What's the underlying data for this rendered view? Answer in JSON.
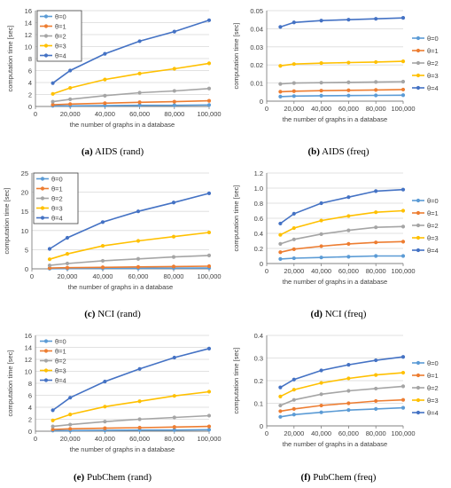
{
  "colors": {
    "theta0": "#5b9bd5",
    "theta1": "#ed7d31",
    "theta2": "#a5a5a5",
    "theta3": "#ffc000",
    "theta4": "#4472c4",
    "axis": "#808080",
    "grid": "#d9d9d9"
  },
  "chart_data": [
    {
      "type": "line",
      "caption_tag": "(a)",
      "caption_text": "AIDS (rand)",
      "ylabel": "computation time [sec]",
      "xlabel": "the number of graphs in a database",
      "x": [
        10000,
        20000,
        40000,
        60000,
        80000,
        100000
      ],
      "xticks": [
        0,
        20000,
        40000,
        60000,
        80000,
        100000
      ],
      "xtick_labels": [
        "0",
        "20,000",
        "40,000",
        "60,000",
        "80,000",
        "100,000"
      ],
      "xlim": [
        0,
        100000
      ],
      "ylim": [
        0,
        16
      ],
      "yticks": [
        0,
        2,
        4,
        6,
        8,
        10,
        12,
        14,
        16
      ],
      "ytick_labels": [
        "0",
        "2",
        "4",
        "6",
        "8",
        "10",
        "12",
        "14",
        "16"
      ],
      "legend_position": "top-left",
      "legend_boxed": true,
      "series": [
        {
          "name": "θ=0",
          "values": [
            0.1,
            0.1,
            0.15,
            0.2,
            0.2,
            0.25
          ]
        },
        {
          "name": "θ=1",
          "values": [
            0.3,
            0.4,
            0.55,
            0.7,
            0.8,
            0.95
          ]
        },
        {
          "name": "θ=2",
          "values": [
            0.8,
            1.2,
            1.8,
            2.3,
            2.6,
            3.0
          ]
        },
        {
          "name": "θ=3",
          "values": [
            2.1,
            3.1,
            4.5,
            5.5,
            6.3,
            7.2
          ]
        },
        {
          "name": "θ=4",
          "values": [
            3.9,
            6.0,
            8.8,
            10.9,
            12.5,
            14.4
          ]
        }
      ]
    },
    {
      "type": "line",
      "caption_tag": "(b)",
      "caption_text": "AIDS (freq)",
      "ylabel": "computation time [sec]",
      "xlabel": "the number of graphs in a database",
      "x": [
        10000,
        20000,
        40000,
        60000,
        80000,
        100000
      ],
      "xticks": [
        0,
        20000,
        40000,
        60000,
        80000,
        100000
      ],
      "xtick_labels": [
        "0",
        "20,000",
        "40,000",
        "60,000",
        "80,000",
        "100,000"
      ],
      "xlim": [
        0,
        100000
      ],
      "ylim": [
        0,
        0.05
      ],
      "yticks": [
        0,
        0.01,
        0.02,
        0.03,
        0.04,
        0.05
      ],
      "ytick_labels": [
        "0",
        "0.01",
        "0.02",
        "0.03",
        "0.04",
        "0.05"
      ],
      "legend_position": "right",
      "legend_boxed": false,
      "series": [
        {
          "name": "θ=0",
          "values": [
            0.0025,
            0.0028,
            0.003,
            0.0031,
            0.0032,
            0.0033
          ]
        },
        {
          "name": "θ=1",
          "values": [
            0.0052,
            0.0055,
            0.0058,
            0.006,
            0.0062,
            0.0064
          ]
        },
        {
          "name": "θ=2",
          "values": [
            0.0095,
            0.01,
            0.0102,
            0.0104,
            0.0106,
            0.0108
          ]
        },
        {
          "name": "θ=3",
          "values": [
            0.0195,
            0.0205,
            0.021,
            0.0213,
            0.0216,
            0.022
          ]
        },
        {
          "name": "θ=4",
          "values": [
            0.041,
            0.0435,
            0.0445,
            0.045,
            0.0455,
            0.046
          ]
        }
      ]
    },
    {
      "type": "line",
      "caption_tag": "(c)",
      "caption_text": "NCI (rand)",
      "ylabel": "computation time [sec]",
      "xlabel": "the number of graphs in a database",
      "x": [
        10000,
        20000,
        40000,
        60000,
        80000,
        100000
      ],
      "xticks": [
        0,
        20000,
        40000,
        60000,
        80000,
        100000
      ],
      "xtick_labels": [
        "0",
        "20,000",
        "40,000",
        "60,000",
        "80,000",
        "100,000"
      ],
      "xlim": [
        0,
        100000
      ],
      "ylim": [
        0,
        25
      ],
      "yticks": [
        0,
        5,
        10,
        15,
        20,
        25
      ],
      "ytick_labels": [
        "0",
        "5",
        "10",
        "15",
        "20",
        "25"
      ],
      "legend_position": "top-left",
      "legend_boxed": true,
      "series": [
        {
          "name": "θ=0",
          "values": [
            0.05,
            0.08,
            0.12,
            0.15,
            0.18,
            0.2
          ]
        },
        {
          "name": "θ=1",
          "values": [
            0.2,
            0.3,
            0.4,
            0.5,
            0.6,
            0.7
          ]
        },
        {
          "name": "θ=2",
          "values": [
            0.9,
            1.4,
            2.1,
            2.6,
            3.1,
            3.5
          ]
        },
        {
          "name": "θ=3",
          "values": [
            2.5,
            3.9,
            6.0,
            7.3,
            8.4,
            9.5
          ]
        },
        {
          "name": "θ=4",
          "values": [
            5.2,
            8.1,
            12.2,
            15.0,
            17.3,
            19.7
          ]
        }
      ]
    },
    {
      "type": "line",
      "caption_tag": "(d)",
      "caption_text": "NCI (freq)",
      "ylabel": "computation time [sec]",
      "xlabel": "the number of graphs in a database",
      "x": [
        10000,
        20000,
        40000,
        60000,
        80000,
        100000
      ],
      "xticks": [
        0,
        20000,
        40000,
        60000,
        80000,
        100000
      ],
      "xtick_labels": [
        "0",
        "20,000",
        "40,000",
        "60,000",
        "80,000",
        "100,000"
      ],
      "xlim": [
        0,
        100000
      ],
      "ylim": [
        0,
        1.2
      ],
      "yticks": [
        0,
        0.2,
        0.4,
        0.6,
        0.8,
        1.0,
        1.2
      ],
      "ytick_labels": [
        "0",
        "0.2",
        "0.4",
        "0.6",
        "0.8",
        "1.0",
        "1.2"
      ],
      "legend_position": "right",
      "legend_boxed": false,
      "series": [
        {
          "name": "θ=0",
          "values": [
            0.06,
            0.07,
            0.08,
            0.09,
            0.1,
            0.1
          ]
        },
        {
          "name": "θ=1",
          "values": [
            0.15,
            0.19,
            0.23,
            0.26,
            0.28,
            0.29
          ]
        },
        {
          "name": "θ=2",
          "values": [
            0.26,
            0.32,
            0.39,
            0.44,
            0.48,
            0.49
          ]
        },
        {
          "name": "θ=3",
          "values": [
            0.38,
            0.47,
            0.57,
            0.63,
            0.68,
            0.7
          ]
        },
        {
          "name": "θ=4",
          "values": [
            0.53,
            0.66,
            0.8,
            0.88,
            0.96,
            0.98
          ]
        }
      ]
    },
    {
      "type": "line",
      "caption_tag": "(e)",
      "caption_text": "PubChem (rand)",
      "ylabel": "computation time [sec]",
      "xlabel": "the number of graphs in a database",
      "x": [
        10000,
        20000,
        40000,
        60000,
        80000,
        100000
      ],
      "xticks": [
        0,
        20000,
        40000,
        60000,
        80000,
        100000
      ],
      "xtick_labels": [
        "0",
        "20,000",
        "40,000",
        "60,000",
        "80,000",
        "100,000"
      ],
      "xlim": [
        0,
        100000
      ],
      "ylim": [
        0,
        16
      ],
      "yticks": [
        0,
        2,
        4,
        6,
        8,
        10,
        12,
        14,
        16
      ],
      "ytick_labels": [
        "0",
        "2",
        "4",
        "6",
        "8",
        "10",
        "12",
        "14",
        "16"
      ],
      "legend_position": "top-left",
      "legend_boxed": false,
      "series": [
        {
          "name": "θ=0",
          "values": [
            0.1,
            0.1,
            0.15,
            0.2,
            0.2,
            0.25
          ]
        },
        {
          "name": "θ=1",
          "values": [
            0.3,
            0.4,
            0.5,
            0.6,
            0.7,
            0.8
          ]
        },
        {
          "name": "θ=2",
          "values": [
            0.8,
            1.1,
            1.6,
            2.0,
            2.3,
            2.6
          ]
        },
        {
          "name": "θ=3",
          "values": [
            1.8,
            2.8,
            4.1,
            5.0,
            5.9,
            6.6
          ]
        },
        {
          "name": "θ=4",
          "values": [
            3.5,
            5.6,
            8.3,
            10.4,
            12.3,
            13.8
          ]
        }
      ]
    },
    {
      "type": "line",
      "caption_tag": "(f)",
      "caption_text": "PubChem (freq)",
      "ylabel": "computation time [sec]",
      "xlabel": "the number of graphs in a database",
      "x": [
        10000,
        20000,
        40000,
        60000,
        80000,
        100000
      ],
      "xticks": [
        0,
        20000,
        40000,
        60000,
        80000,
        100000
      ],
      "xtick_labels": [
        "0",
        "20,000",
        "40,000",
        "60,000",
        "80,000",
        "100,000"
      ],
      "xlim": [
        0,
        100000
      ],
      "ylim": [
        0,
        0.4
      ],
      "yticks": [
        0,
        0.1,
        0.2,
        0.3,
        0.4
      ],
      "ytick_labels": [
        "0",
        "0.1",
        "0.2",
        "0.3",
        "0.4"
      ],
      "legend_position": "right",
      "legend_boxed": false,
      "series": [
        {
          "name": "θ=0",
          "values": [
            0.04,
            0.05,
            0.06,
            0.07,
            0.075,
            0.08
          ]
        },
        {
          "name": "θ=1",
          "values": [
            0.065,
            0.075,
            0.09,
            0.1,
            0.11,
            0.115
          ]
        },
        {
          "name": "θ=2",
          "values": [
            0.09,
            0.115,
            0.14,
            0.155,
            0.165,
            0.175
          ]
        },
        {
          "name": "θ=3",
          "values": [
            0.13,
            0.16,
            0.19,
            0.21,
            0.225,
            0.235
          ]
        },
        {
          "name": "θ=4",
          "values": [
            0.17,
            0.205,
            0.245,
            0.27,
            0.29,
            0.305
          ]
        }
      ]
    }
  ]
}
